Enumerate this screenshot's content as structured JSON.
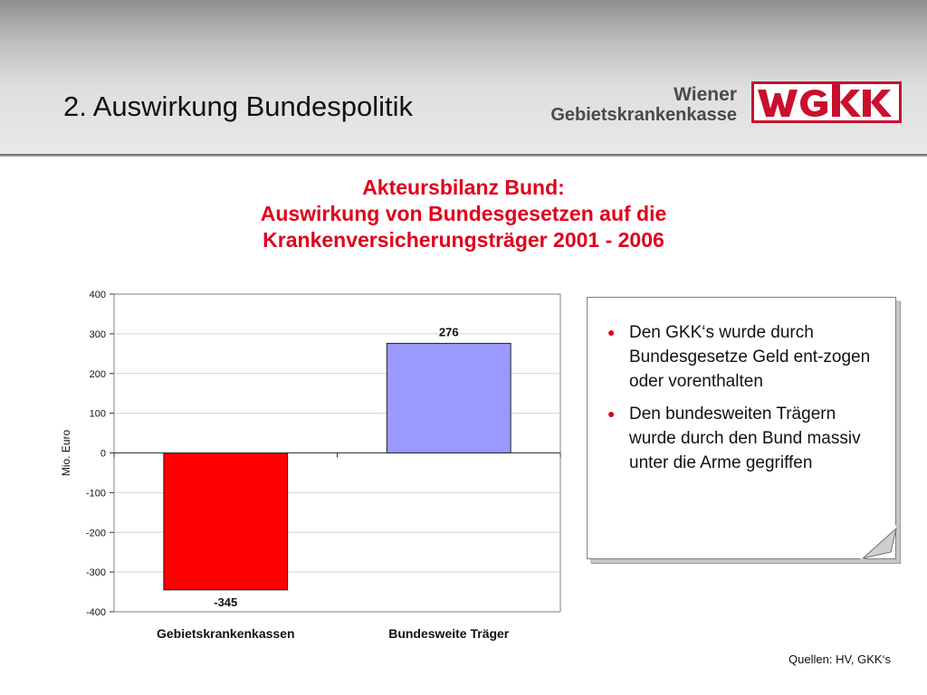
{
  "slide": {
    "title": "2. Auswirkung Bundespolitik",
    "source": "Quellen: HV, GKK‘s"
  },
  "logo": {
    "line1": "Wiener",
    "line2": "Gebietskrankenkasse",
    "mark": "WGKK"
  },
  "chart_title": {
    "line1": "Akteursbilanz Bund:",
    "line2": "Auswirkung von Bundesgesetzen auf die",
    "line3": "Krankenversicherungsträger 2001 - 2006"
  },
  "chart_data": {
    "type": "bar",
    "title": "Akteursbilanz Bund: Auswirkung von Bundesgesetzen auf die Krankenversicherungsträger 2001 - 2006",
    "categories": [
      "Gebietskrankenkassen",
      "Bundesweite Träger"
    ],
    "values": [
      -345,
      276
    ],
    "data_labels": [
      "-345",
      "276"
    ],
    "bar_colors": [
      "#ff0000",
      "#9999ff"
    ],
    "ylabel": "Mio. Euro",
    "xlabel": "",
    "ylim": [
      -400,
      400
    ],
    "yticks": [
      400,
      300,
      200,
      100,
      0,
      -100,
      -200,
      -300,
      -400
    ],
    "grid": true,
    "legend": "none"
  },
  "note": {
    "bullets": [
      "Den GKK‘s wurde durch Bundesgesetze Geld ent-zogen oder vorenthalten",
      "Den bundesweiten Trägern wurde durch den Bund massiv unter die Arme gegriffen"
    ],
    "bullet_symbol": "●"
  }
}
